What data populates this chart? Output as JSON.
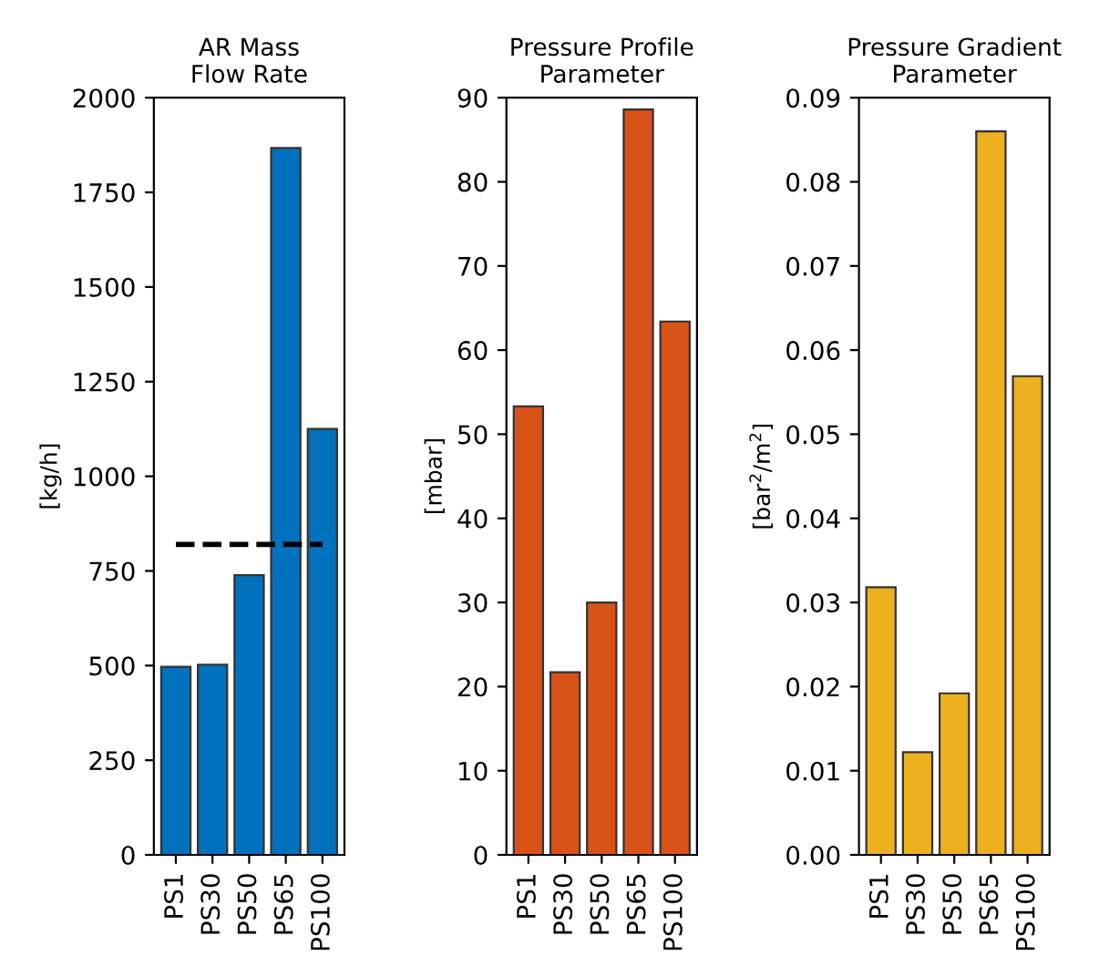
{
  "chart_data": [
    {
      "type": "bar",
      "title": "AR Mass\nFlow Rate",
      "ylabel": "[kg/h]",
      "categories": [
        "PS1",
        "PS30",
        "PS50",
        "PS65",
        "PS100"
      ],
      "values": [
        497,
        502,
        739,
        1867,
        1125
      ],
      "color": "#0072bd",
      "ylim": [
        0,
        2000
      ],
      "yticks": [
        0,
        250,
        500,
        750,
        1000,
        1250,
        1500,
        1750,
        2000
      ],
      "grid": false,
      "ref_lines": [
        {
          "axis": "y",
          "value": 820,
          "color": "#000000",
          "line_style": "dashed"
        }
      ]
    },
    {
      "type": "bar",
      "title": "Pressure Profile\nParameter",
      "ylabel": "[mbar]",
      "categories": [
        "PS1",
        "PS30",
        "PS50",
        "PS65",
        "PS100"
      ],
      "values": [
        53.3,
        21.7,
        30.0,
        88.6,
        63.4
      ],
      "color": "#d95319",
      "ylim": [
        0,
        90
      ],
      "yticks": [
        0,
        10,
        20,
        30,
        40,
        50,
        60,
        70,
        80,
        90
      ],
      "grid": false
    },
    {
      "type": "bar",
      "title": "Pressure Gradient\nParameter",
      "ylabel": "[bar$^{2}$/m$^{2}$]",
      "categories": [
        "PS1",
        "PS30",
        "PS50",
        "PS65",
        "PS100"
      ],
      "values": [
        0.0318,
        0.0122,
        0.0192,
        0.086,
        0.0569
      ],
      "color": "#edb120",
      "ylim": [
        0,
        0.09
      ],
      "yticks": [
        {
          "value": 0,
          "label": "0.00"
        },
        {
          "value": 0.01,
          "label": "0.01"
        },
        {
          "value": 0.02,
          "label": "0.02"
        },
        {
          "value": 0.03,
          "label": "0.03"
        },
        {
          "value": 0.04,
          "label": "0.04"
        },
        {
          "value": 0.05,
          "label": "0.05"
        },
        {
          "value": 0.06,
          "label": "0.06"
        },
        {
          "value": 0.07,
          "label": "0.07"
        },
        {
          "value": 0.08,
          "label": "0.08"
        },
        {
          "value": 0.09,
          "label": "0.09"
        }
      ],
      "grid": false
    }
  ]
}
